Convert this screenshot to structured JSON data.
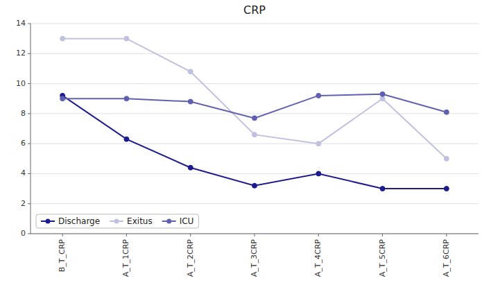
{
  "chart_data": {
    "type": "line",
    "title": "CRP",
    "categories": [
      "B_T_CRP",
      "A_T_1CRP",
      "A_T_2CRP",
      "A_T_3CRP",
      "A_T_4CRP",
      "A_T_5CRP",
      "A_T_6CRP"
    ],
    "series": [
      {
        "name": "Discharge",
        "color": "#1c1c8f",
        "marker": "circle",
        "values": [
          9.2,
          6.3,
          4.4,
          3.2,
          4.0,
          3.0,
          3.0
        ]
      },
      {
        "name": "Exitus",
        "color": "#c0c0e0",
        "marker": "circle",
        "values": [
          13.0,
          13.0,
          10.8,
          6.6,
          6.0,
          9.0,
          5.0
        ]
      },
      {
        "name": "ICU",
        "color": "#6060b0",
        "marker": "circle",
        "values": [
          9.0,
          9.0,
          8.8,
          7.7,
          9.2,
          9.3,
          8.1
        ]
      }
    ],
    "ylim": [
      0,
      14
    ],
    "yticks": [
      0,
      2,
      4,
      6,
      8,
      10,
      12,
      14
    ],
    "grid": true,
    "legend": "lower left"
  }
}
